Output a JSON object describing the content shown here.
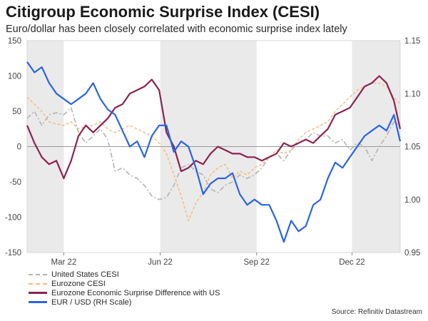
{
  "title": "Citigroup Economic Surprise Index (CESI)",
  "subtitle": "Euro/dollar has been closely correlated with economic surprise index lately",
  "source": "Source: Refinitiv Datastream",
  "colors": {
    "shade": "#eaeaea",
    "us": "#b3b3b3",
    "ez": "#f5b97a",
    "diff": "#8b2252",
    "eurusd": "#2b63e6",
    "axis_text": "#444444",
    "zero_line": "#999999"
  },
  "chart_data": {
    "type": "line",
    "x_range": [
      "2022-01-25",
      "2023-01-16"
    ],
    "x_ticks": [
      {
        "date": "2022-03-01",
        "label": "Mar 22"
      },
      {
        "date": "2022-06-01",
        "label": "Jun 22"
      },
      {
        "date": "2022-09-01",
        "label": "Sep 22"
      },
      {
        "date": "2022-12-01",
        "label": "Dec 22"
      }
    ],
    "shaded_periods": [
      [
        "2022-01-25",
        "2022-03-01"
      ],
      [
        "2022-06-01",
        "2022-09-01"
      ],
      [
        "2022-12-01",
        "2023-01-16"
      ]
    ],
    "y_left": {
      "range": [
        -150,
        150
      ],
      "ticks": [
        "150",
        "100",
        "50",
        "0",
        "-50",
        "-100",
        "-150"
      ]
    },
    "y_right": {
      "range": [
        0.95,
        1.15
      ],
      "ticks": [
        "1.15",
        "1.10",
        "1.05",
        "1.00",
        "0.95"
      ]
    },
    "legend": {
      "position": "bottom-left",
      "entries": [
        "United States CESI",
        "Eurozone CESI",
        "Eurozone Economic Surprise Difference with US",
        "EUR / USD (RH Scale)"
      ]
    },
    "series": [
      {
        "name": "United States CESI",
        "axis": "left",
        "style": "dashdot",
        "x": [
          "2022-01-25",
          "2022-02-01",
          "2022-02-08",
          "2022-02-15",
          "2022-02-22",
          "2022-03-01",
          "2022-03-08",
          "2022-03-15",
          "2022-03-22",
          "2022-03-29",
          "2022-04-05",
          "2022-04-12",
          "2022-04-19",
          "2022-04-26",
          "2022-05-03",
          "2022-05-10",
          "2022-05-17",
          "2022-05-24",
          "2022-05-31",
          "2022-06-07",
          "2022-06-14",
          "2022-06-21",
          "2022-06-28",
          "2022-07-05",
          "2022-07-12",
          "2022-07-19",
          "2022-07-26",
          "2022-08-02",
          "2022-08-09",
          "2022-08-16",
          "2022-08-23",
          "2022-08-30",
          "2022-09-06",
          "2022-09-13",
          "2022-09-20",
          "2022-09-27",
          "2022-10-04",
          "2022-10-11",
          "2022-10-18",
          "2022-10-25",
          "2022-11-01",
          "2022-11-08",
          "2022-11-15",
          "2022-11-22",
          "2022-11-29",
          "2022-12-06",
          "2022-12-13",
          "2022-12-20",
          "2022-12-27",
          "2023-01-03",
          "2023-01-10",
          "2023-01-16"
        ],
        "values": [
          40,
          50,
          30,
          45,
          48,
          45,
          55,
          20,
          5,
          15,
          25,
          10,
          -35,
          -30,
          -40,
          -45,
          -55,
          -70,
          -75,
          -72,
          -55,
          -30,
          -25,
          -35,
          -40,
          -60,
          -65,
          -55,
          -50,
          -40,
          -45,
          -40,
          -30,
          -15,
          -10,
          -20,
          -5,
          5,
          10,
          20,
          15,
          15,
          5,
          10,
          -5,
          5,
          0,
          -20,
          0,
          15,
          35,
          30
        ]
      },
      {
        "name": "Eurozone CESI",
        "axis": "left",
        "style": "dashed",
        "x": [
          "2022-01-25",
          "2022-02-01",
          "2022-02-08",
          "2022-02-15",
          "2022-02-22",
          "2022-03-01",
          "2022-03-08",
          "2022-03-15",
          "2022-03-22",
          "2022-03-29",
          "2022-04-05",
          "2022-04-12",
          "2022-04-19",
          "2022-04-26",
          "2022-05-03",
          "2022-05-10",
          "2022-05-17",
          "2022-05-24",
          "2022-05-31",
          "2022-06-07",
          "2022-06-14",
          "2022-06-21",
          "2022-06-28",
          "2022-07-05",
          "2022-07-12",
          "2022-07-19",
          "2022-07-26",
          "2022-08-02",
          "2022-08-09",
          "2022-08-16",
          "2022-08-23",
          "2022-08-30",
          "2022-09-06",
          "2022-09-13",
          "2022-09-20",
          "2022-09-27",
          "2022-10-04",
          "2022-10-11",
          "2022-10-18",
          "2022-10-25",
          "2022-11-01",
          "2022-11-08",
          "2022-11-15",
          "2022-11-22",
          "2022-11-29",
          "2022-12-06",
          "2022-12-13",
          "2022-12-20",
          "2022-12-27",
          "2023-01-03",
          "2023-01-10",
          "2023-01-16"
        ],
        "values": [
          70,
          60,
          50,
          35,
          32,
          30,
          35,
          25,
          28,
          30,
          35,
          25,
          20,
          25,
          30,
          25,
          20,
          15,
          5,
          -10,
          -40,
          -70,
          -105,
          -80,
          -65,
          -40,
          -30,
          -25,
          -45,
          -35,
          -40,
          -30,
          -25,
          -15,
          -5,
          -10,
          -5,
          10,
          20,
          25,
          30,
          35,
          50,
          60,
          70,
          80,
          85,
          90,
          90,
          85,
          70,
          60
        ]
      },
      {
        "name": "Eurozone Economic Surprise Difference with US",
        "axis": "left",
        "style": "solid",
        "x": [
          "2022-01-25",
          "2022-02-01",
          "2022-02-08",
          "2022-02-15",
          "2022-02-22",
          "2022-03-01",
          "2022-03-08",
          "2022-03-15",
          "2022-03-22",
          "2022-03-29",
          "2022-04-05",
          "2022-04-12",
          "2022-04-19",
          "2022-04-26",
          "2022-05-03",
          "2022-05-10",
          "2022-05-17",
          "2022-05-24",
          "2022-05-31",
          "2022-06-07",
          "2022-06-14",
          "2022-06-21",
          "2022-06-28",
          "2022-07-05",
          "2022-07-12",
          "2022-07-19",
          "2022-07-26",
          "2022-08-02",
          "2022-08-09",
          "2022-08-16",
          "2022-08-23",
          "2022-08-30",
          "2022-09-06",
          "2022-09-13",
          "2022-09-20",
          "2022-09-27",
          "2022-10-04",
          "2022-10-11",
          "2022-10-18",
          "2022-10-25",
          "2022-11-01",
          "2022-11-08",
          "2022-11-15",
          "2022-11-22",
          "2022-11-29",
          "2022-12-06",
          "2022-12-13",
          "2022-12-20",
          "2022-12-27",
          "2023-01-03",
          "2023-01-10",
          "2023-01-16"
        ],
        "values": [
          30,
          5,
          -15,
          -25,
          -20,
          -45,
          -20,
          15,
          30,
          20,
          30,
          40,
          55,
          60,
          75,
          80,
          85,
          95,
          80,
          20,
          0,
          -35,
          -30,
          -20,
          -25,
          -10,
          0,
          -5,
          -10,
          -10,
          -15,
          -15,
          -20,
          -15,
          -10,
          5,
          0,
          5,
          10,
          5,
          15,
          25,
          45,
          50,
          55,
          70,
          85,
          90,
          100,
          90,
          65,
          25
        ]
      },
      {
        "name": "EUR / USD (RH Scale)",
        "axis": "right",
        "style": "solid",
        "x": [
          "2022-01-25",
          "2022-02-01",
          "2022-02-08",
          "2022-02-15",
          "2022-02-22",
          "2022-03-01",
          "2022-03-08",
          "2022-03-15",
          "2022-03-22",
          "2022-03-29",
          "2022-04-05",
          "2022-04-12",
          "2022-04-19",
          "2022-04-26",
          "2022-05-03",
          "2022-05-10",
          "2022-05-17",
          "2022-05-24",
          "2022-05-31",
          "2022-06-07",
          "2022-06-14",
          "2022-06-21",
          "2022-06-28",
          "2022-07-05",
          "2022-07-12",
          "2022-07-19",
          "2022-07-26",
          "2022-08-02",
          "2022-08-09",
          "2022-08-16",
          "2022-08-23",
          "2022-08-30",
          "2022-09-06",
          "2022-09-13",
          "2022-09-20",
          "2022-09-27",
          "2022-10-04",
          "2022-10-11",
          "2022-10-18",
          "2022-10-25",
          "2022-11-01",
          "2022-11-08",
          "2022-11-15",
          "2022-11-22",
          "2022-11-29",
          "2022-12-06",
          "2022-12-13",
          "2022-12-20",
          "2022-12-27",
          "2023-01-03",
          "2023-01-10",
          "2023-01-16"
        ],
        "values": [
          1.13,
          1.12,
          1.125,
          1.11,
          1.1,
          1.095,
          1.09,
          1.095,
          1.1,
          1.11,
          1.095,
          1.085,
          1.08,
          1.065,
          1.05,
          1.055,
          1.04,
          1.06,
          1.07,
          1.07,
          1.045,
          1.055,
          1.05,
          1.03,
          1.005,
          1.015,
          1.02,
          1.02,
          1.025,
          1.005,
          0.995,
          1.0,
          0.995,
          0.995,
          0.98,
          0.96,
          0.98,
          0.97,
          0.975,
          0.995,
          1.0,
          1.02,
          1.035,
          1.03,
          1.04,
          1.05,
          1.06,
          1.065,
          1.07,
          1.065,
          1.08,
          1.055
        ]
      }
    ]
  }
}
